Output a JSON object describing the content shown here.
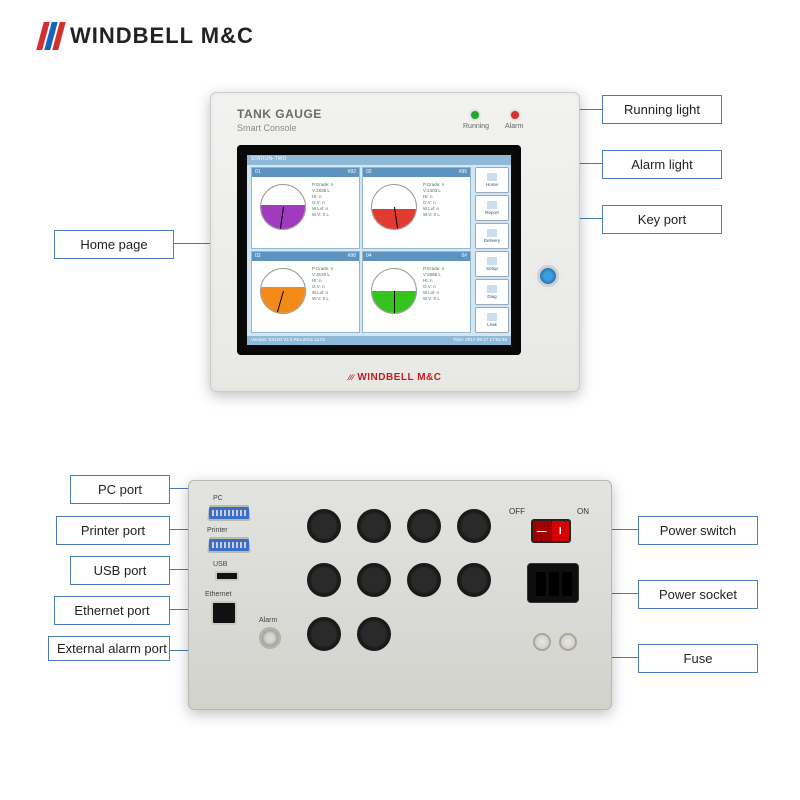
{
  "brand": {
    "name": "WINDBELL M&C",
    "stripes": [
      "#d32f2f",
      "#1565c0",
      "#d32f2f"
    ]
  },
  "callouts_front": {
    "left": [
      {
        "text": "Home page"
      }
    ],
    "right": [
      {
        "text": "Running light"
      },
      {
        "text": "Alarm light"
      },
      {
        "text": "Key port"
      }
    ]
  },
  "callouts_rear": {
    "left": [
      {
        "text": "PC port"
      },
      {
        "text": "Printer port"
      },
      {
        "text": "USB port"
      },
      {
        "text": "Ethernet port"
      },
      {
        "text": "External alarm port"
      }
    ],
    "right": [
      {
        "text": "Power switch"
      },
      {
        "text": "Power socket"
      },
      {
        "text": "Fuse"
      }
    ]
  },
  "console": {
    "title": "TANK GAUGE",
    "subtitle": "Smart Console",
    "leds": {
      "running": {
        "label": "Running",
        "color": "#1fa82b"
      },
      "alarm": {
        "label": "Alarm",
        "color": "#d32f2f"
      }
    },
    "brand_small": "WINDBELL M&C",
    "screen": {
      "top_bar": "STATION–TWO",
      "bottom_left": "Version: SS100 V2.5 Rev.2014.12.01",
      "bottom_right": "Time: 2017-09-17 17:02:45",
      "tanks": [
        {
          "id": "01",
          "name": "#92",
          "fill_pct": 55,
          "color": "#a03bbf",
          "text": "P.Grade: n\nV:2838 L\nHt: n\nO.V: n\nW.Lvl: n\nW.V: 0 L"
        },
        {
          "id": "02",
          "name": "#95",
          "fill_pct": 45,
          "color": "#e23a2f",
          "text": "P.Grade: n\nV:2403 L\nHt: n\nO.V: n\nW.Lvl: n\nW.V: 0 L"
        },
        {
          "id": "03",
          "name": "#98",
          "fill_pct": 60,
          "color": "#f28a17",
          "text": "P.Grade: n\nV:3120 L\nHt: n\nO.V: n\nW.Lvl: n\nW.V: 0 L"
        },
        {
          "id": "04",
          "name": "0#",
          "fill_pct": 50,
          "color": "#35c41d",
          "text": "P.Grade: n\nV:2688 L\nHt: n\nO.V: n\nW.Lvl: n\nW.V: 0 L"
        }
      ],
      "side_buttons": [
        "Home",
        "Report",
        "Delivery",
        "Setup",
        "Diag",
        "Leak"
      ]
    }
  },
  "rear": {
    "port_labels": {
      "pc": "PC",
      "printer": "Printer",
      "usb": "USB",
      "ethernet": "Ethernet",
      "alarm": "Alarm"
    },
    "switch_labels": {
      "off": "OFF",
      "on": "ON"
    },
    "cable_glands_count": 10
  },
  "style": {
    "callout_border": "#4a7bb8",
    "callout_fontsize": 13,
    "logo_fontsize": 22,
    "bg": "#ffffff"
  }
}
